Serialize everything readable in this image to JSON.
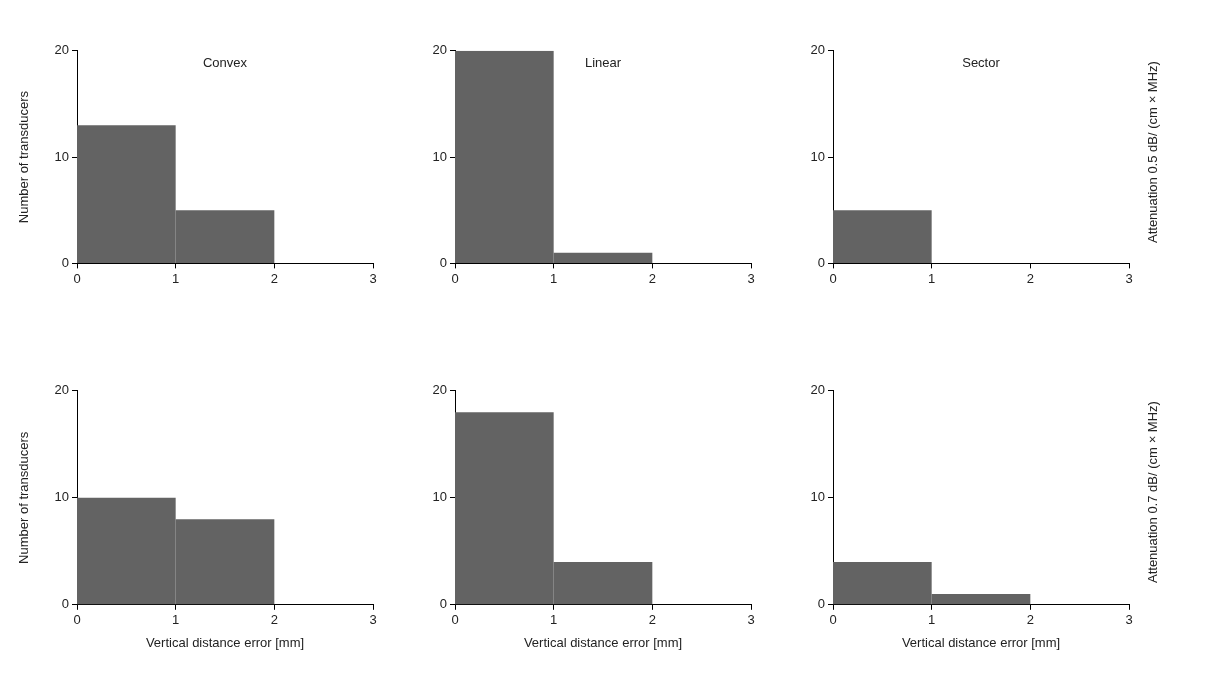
{
  "chart_data": [
    {
      "type": "histogram",
      "title": "Convex",
      "ylabel": "Number of transducers",
      "bins": [
        0,
        1,
        2,
        3
      ],
      "values": [
        13,
        5,
        0
      ],
      "color": "#636363",
      "xlim": [
        0,
        3
      ],
      "xticks": [
        0,
        1,
        2,
        3
      ],
      "ylim": [
        0,
        20
      ],
      "yticks": [
        0,
        10,
        20
      ]
    },
    {
      "type": "histogram",
      "title": "Linear",
      "bins": [
        0,
        1,
        2,
        3
      ],
      "values": [
        20,
        1,
        0
      ],
      "color": "#636363",
      "xlim": [
        0,
        3
      ],
      "xticks": [
        0,
        1,
        2,
        3
      ],
      "ylim": [
        0,
        20
      ],
      "yticks": [
        0,
        10,
        20
      ]
    },
    {
      "type": "histogram",
      "title": "Sector",
      "y2label": "Attenuation 0.5 dB/ (cm×MHz)",
      "bins": [
        0,
        1,
        2,
        3
      ],
      "values": [
        5,
        0,
        0
      ],
      "color": "#636363",
      "xlim": [
        0,
        3
      ],
      "xticks": [
        0,
        1,
        2,
        3
      ],
      "ylim": [
        0,
        20
      ],
      "yticks": [
        0,
        10,
        20
      ]
    },
    {
      "type": "histogram",
      "ylabel": "Number of transducers",
      "xlabel": "Vertical distance error [mm]",
      "bins": [
        0,
        1,
        2,
        3
      ],
      "values": [
        10,
        8,
        0
      ],
      "color": "#636363",
      "xlim": [
        0,
        3
      ],
      "xticks": [
        0,
        1,
        2,
        3
      ],
      "ylim": [
        0,
        20
      ],
      "yticks": [
        0,
        10,
        20
      ]
    },
    {
      "type": "histogram",
      "xlabel": "Vertical distance error [mm]",
      "bins": [
        0,
        1,
        2,
        3
      ],
      "values": [
        18,
        4,
        0
      ],
      "color": "#636363",
      "xlim": [
        0,
        3
      ],
      "xticks": [
        0,
        1,
        2,
        3
      ],
      "ylim": [
        0,
        20
      ],
      "yticks": [
        0,
        10,
        20
      ]
    },
    {
      "type": "histogram",
      "xlabel": "Vertical distance error [mm]",
      "y2label": "Attenuation 0.7 dB/ (cm×MHz)",
      "bins": [
        0,
        1,
        2,
        3
      ],
      "values": [
        4,
        1,
        0
      ],
      "color": "#636363",
      "xlim": [
        0,
        3
      ],
      "xticks": [
        0,
        1,
        2,
        3
      ],
      "ylim": [
        0,
        20
      ],
      "yticks": [
        0,
        10,
        20
      ]
    }
  ]
}
